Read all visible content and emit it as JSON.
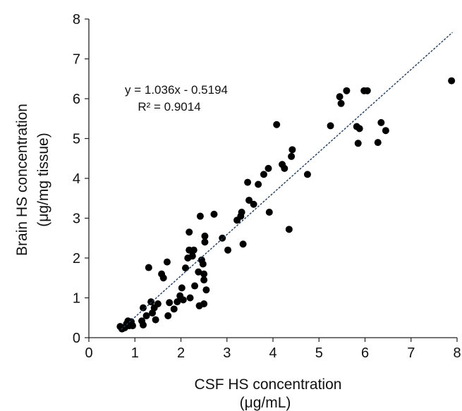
{
  "chart_data": {
    "type": "scatter",
    "xlabel": "CSF HS concentration",
    "xlabel_unit": "(μg/mL)",
    "ylabel": "Brain HS concentration",
    "ylabel_unit": "(μg/mg tissue)",
    "xlim": [
      0,
      8
    ],
    "ylim": [
      0,
      8
    ],
    "xticks": [
      "0",
      "1",
      "2",
      "3",
      "4",
      "5",
      "6",
      "7",
      "8"
    ],
    "yticks": [
      "0",
      "1",
      "2",
      "3",
      "4",
      "5",
      "6",
      "7",
      "8"
    ],
    "grid": false,
    "legend": "none",
    "trendline": {
      "slope": 1.036,
      "intercept": -0.5194,
      "style": "dashed",
      "equation": "y = 1.036x - 0.5194",
      "r_squared": "R² = 0.9014"
    },
    "points": [
      [
        0.68,
        0.28
      ],
      [
        0.72,
        0.22
      ],
      [
        0.78,
        0.25
      ],
      [
        0.82,
        0.35
      ],
      [
        0.85,
        0.42
      ],
      [
        0.88,
        0.3
      ],
      [
        0.92,
        0.4
      ],
      [
        0.95,
        0.3
      ],
      [
        1.15,
        0.42
      ],
      [
        1.18,
        0.75
      ],
      [
        1.18,
        0.32
      ],
      [
        1.25,
        0.55
      ],
      [
        1.3,
        1.76
      ],
      [
        1.35,
        0.9
      ],
      [
        1.38,
        0.62
      ],
      [
        1.42,
        0.75
      ],
      [
        1.45,
        0.45
      ],
      [
        1.5,
        0.85
      ],
      [
        1.58,
        1.6
      ],
      [
        1.62,
        1.5
      ],
      [
        1.7,
        1.9
      ],
      [
        1.72,
        0.55
      ],
      [
        1.75,
        0.88
      ],
      [
        1.85,
        0.72
      ],
      [
        1.92,
        0.9
      ],
      [
        1.98,
        1.05
      ],
      [
        2.02,
        1.25
      ],
      [
        2.05,
        0.95
      ],
      [
        2.1,
        1.75
      ],
      [
        2.15,
        2.0
      ],
      [
        2.18,
        2.65
      ],
      [
        2.18,
        2.2
      ],
      [
        2.2,
        1.0
      ],
      [
        2.25,
        2.05
      ],
      [
        2.28,
        2.2
      ],
      [
        2.3,
        1.3
      ],
      [
        2.38,
        1.65
      ],
      [
        2.4,
        0.8
      ],
      [
        2.42,
        3.05
      ],
      [
        2.45,
        1.95
      ],
      [
        2.48,
        1.85
      ],
      [
        2.5,
        1.6
      ],
      [
        2.5,
        1.45
      ],
      [
        2.5,
        0.85
      ],
      [
        2.52,
        2.55
      ],
      [
        2.52,
        2.4
      ],
      [
        2.55,
        1.2
      ],
      [
        2.72,
        3.1
      ],
      [
        2.9,
        2.5
      ],
      [
        3.02,
        2.2
      ],
      [
        3.22,
        2.95
      ],
      [
        3.3,
        3.05
      ],
      [
        3.32,
        3.15
      ],
      [
        3.35,
        2.35
      ],
      [
        3.45,
        3.9
      ],
      [
        3.48,
        3.45
      ],
      [
        3.58,
        3.35
      ],
      [
        3.68,
        3.85
      ],
      [
        3.8,
        4.1
      ],
      [
        3.9,
        4.25
      ],
      [
        3.92,
        3.15
      ],
      [
        4.08,
        5.35
      ],
      [
        4.2,
        4.35
      ],
      [
        4.25,
        4.25
      ],
      [
        4.35,
        2.72
      ],
      [
        4.4,
        4.55
      ],
      [
        4.42,
        4.72
      ],
      [
        4.75,
        4.1
      ],
      [
        5.25,
        5.32
      ],
      [
        5.45,
        6.05
      ],
      [
        5.48,
        5.88
      ],
      [
        5.6,
        6.2
      ],
      [
        5.82,
        5.3
      ],
      [
        5.85,
        4.88
      ],
      [
        5.88,
        5.25
      ],
      [
        5.98,
        6.2
      ],
      [
        6.05,
        6.2
      ],
      [
        6.28,
        4.9
      ],
      [
        6.35,
        5.4
      ],
      [
        6.45,
        5.2
      ],
      [
        7.88,
        6.45
      ]
    ]
  }
}
